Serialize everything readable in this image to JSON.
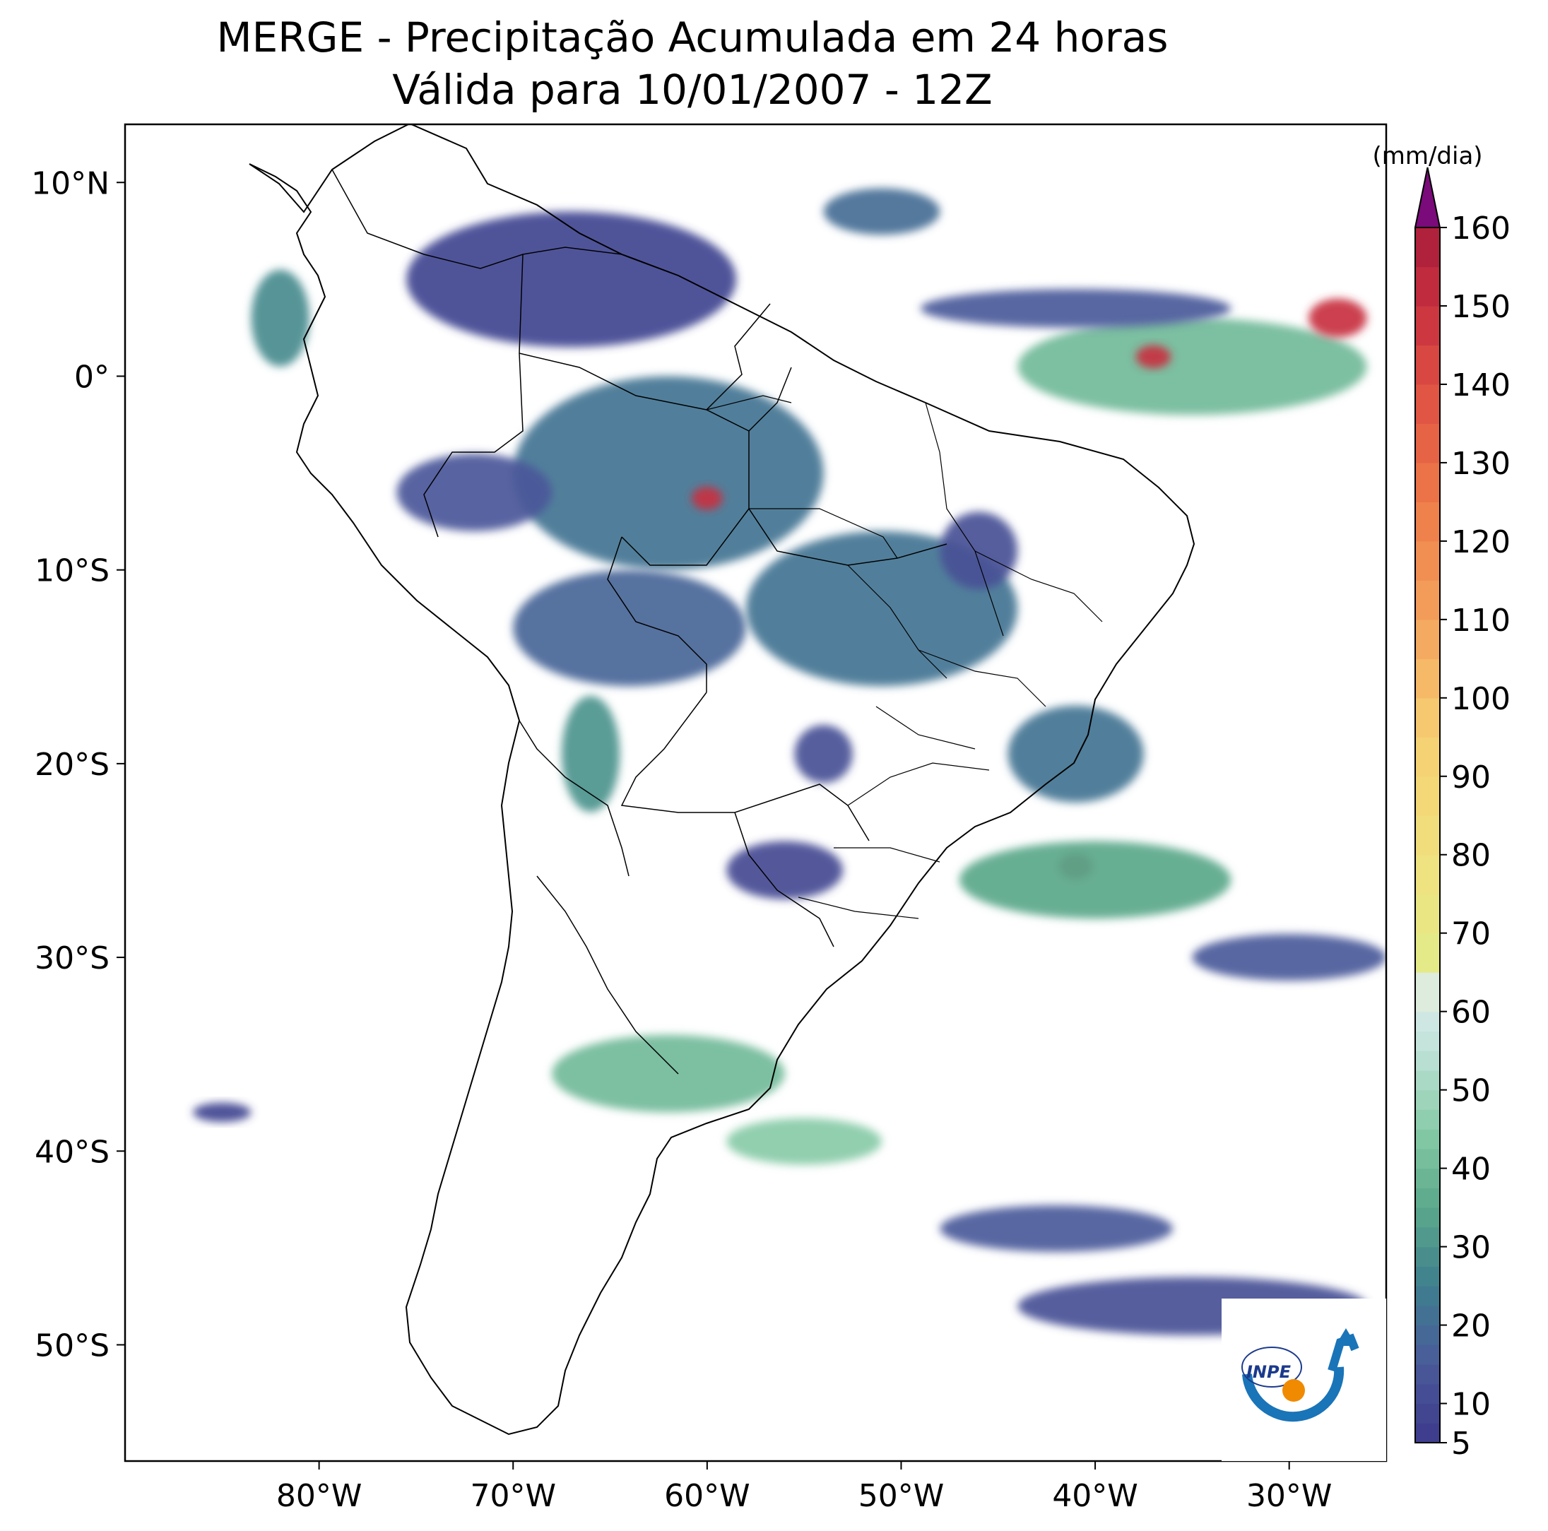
{
  "title": {
    "line1": "MERGE - Precipitação Acumulada em 24 horas",
    "line2": "Válida para 10/01/2007 - 12Z"
  },
  "map": {
    "lon_range": [
      -90,
      -25
    ],
    "lat_range": [
      -56,
      13
    ],
    "lat_ticks": [
      {
        "value": 10,
        "label": "10°N"
      },
      {
        "value": 0,
        "label": "0°"
      },
      {
        "value": -10,
        "label": "10°S"
      },
      {
        "value": -20,
        "label": "20°S"
      },
      {
        "value": -30,
        "label": "30°S"
      },
      {
        "value": -40,
        "label": "40°S"
      },
      {
        "value": -50,
        "label": "50°S"
      }
    ],
    "lon_ticks": [
      {
        "value": -80,
        "label": "80°W"
      },
      {
        "value": -70,
        "label": "70°W"
      },
      {
        "value": -60,
        "label": "60°W"
      },
      {
        "value": -50,
        "label": "50°W"
      },
      {
        "value": -40,
        "label": "40°W"
      },
      {
        "value": -30,
        "label": "30°W"
      }
    ],
    "precip_blobs": [
      {
        "lon": -67,
        "lat": 5,
        "rx": 8.5,
        "ry": 3.5,
        "mm": 8
      },
      {
        "lon": -62,
        "lat": -5,
        "rx": 8,
        "ry": 5,
        "mm": 22
      },
      {
        "lon": -60,
        "lat": -6.3,
        "rx": 0.8,
        "ry": 0.6,
        "mm": 150
      },
      {
        "lon": -72,
        "lat": -6,
        "rx": 4,
        "ry": 2,
        "mm": 14
      },
      {
        "lon": -64,
        "lat": -13,
        "rx": 6,
        "ry": 3,
        "mm": 18
      },
      {
        "lon": -51,
        "lat": -12,
        "rx": 7,
        "ry": 4,
        "mm": 22
      },
      {
        "lon": -41,
        "lat": -19.5,
        "rx": 3.5,
        "ry": 2.5,
        "mm": 22
      },
      {
        "lon": -41,
        "lat": -25.3,
        "rx": 0.9,
        "ry": 0.7,
        "mm": 160
      },
      {
        "lon": -40,
        "lat": -26,
        "rx": 7,
        "ry": 2,
        "mm": 35
      },
      {
        "lon": -62,
        "lat": -36,
        "rx": 6,
        "ry": 2,
        "mm": 40
      },
      {
        "lon": -55,
        "lat": -39.5,
        "rx": 4,
        "ry": 1.2,
        "mm": 45
      },
      {
        "lon": -35,
        "lat": 0.5,
        "rx": 9,
        "ry": 2.5,
        "mm": 40
      },
      {
        "lon": -27.5,
        "lat": 3,
        "rx": 1.5,
        "ry": 1,
        "mm": 150
      },
      {
        "lon": -37,
        "lat": 1,
        "rx": 0.9,
        "ry": 0.6,
        "mm": 150
      },
      {
        "lon": -51,
        "lat": 8.5,
        "rx": 3,
        "ry": 1.2,
        "mm": 20
      },
      {
        "lon": -82,
        "lat": 3,
        "rx": 1.5,
        "ry": 2.5,
        "mm": 28
      },
      {
        "lon": -42,
        "lat": -44,
        "rx": 6,
        "ry": 1.2,
        "mm": 15
      },
      {
        "lon": -35,
        "lat": -48,
        "rx": 9,
        "ry": 1.5,
        "mm": 12
      },
      {
        "lon": -30,
        "lat": -30,
        "rx": 5,
        "ry": 1.2,
        "mm": 15
      },
      {
        "lon": -66,
        "lat": -19.5,
        "rx": 1.5,
        "ry": 3,
        "mm": 30
      },
      {
        "lon": -54,
        "lat": -19.5,
        "rx": 1.5,
        "ry": 1.5,
        "mm": 12
      },
      {
        "lon": -56,
        "lat": -25.5,
        "rx": 3,
        "ry": 1.5,
        "mm": 10
      },
      {
        "lon": -41,
        "lat": 3.5,
        "rx": 8,
        "ry": 1,
        "mm": 15
      },
      {
        "lon": -46,
        "lat": -9,
        "rx": 2,
        "ry": 2,
        "mm": 12
      },
      {
        "lon": -85,
        "lat": -38,
        "rx": 1.5,
        "ry": 0.5,
        "mm": 8
      }
    ]
  },
  "colorbar": {
    "unit": "(mm/dia)",
    "tick_labels": [
      "5",
      "10",
      "20",
      "30",
      "40",
      "50",
      "60",
      "70",
      "80",
      "90",
      "100",
      "110",
      "120",
      "130",
      "140",
      "150",
      "160"
    ],
    "levels": [
      5,
      7.5,
      10,
      12.5,
      15,
      17.5,
      20,
      22.5,
      25,
      27.5,
      30,
      32.5,
      35,
      37.5,
      40,
      42.5,
      45,
      47.5,
      50,
      52.5,
      55,
      57.5,
      60,
      65,
      70,
      75,
      80,
      85,
      90,
      95,
      100,
      105,
      110,
      115,
      120,
      125,
      130,
      135,
      140,
      145,
      150,
      155,
      160
    ],
    "extend": "max",
    "over_color": "#7b0a7a"
  },
  "logo": {
    "text": "INPE"
  }
}
